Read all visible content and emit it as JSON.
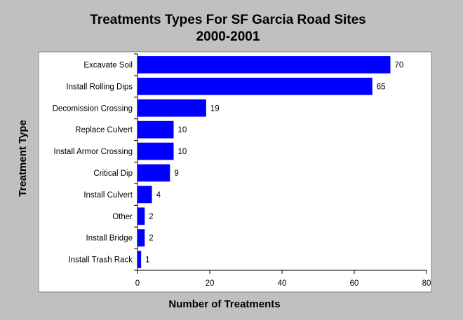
{
  "chart_data": {
    "type": "bar",
    "orientation": "horizontal",
    "title": "Treatments Types For SF Garcia Road Sites",
    "subtitle": "2000-2001",
    "xlabel": "Number of Treatments",
    "ylabel": "Treatment Type",
    "categories": [
      "Excavate Soil",
      "Install Rolling Dips",
      "Decomission Crossing",
      "Replace Culvert",
      "Install Armor Crossing",
      "Critical Dip",
      "Install Culvert",
      "Other",
      "Install Bridge",
      "Install Trash Rack"
    ],
    "values": [
      70,
      65,
      19,
      10,
      10,
      9,
      4,
      2,
      2,
      1
    ],
    "xlim": [
      0,
      80
    ],
    "xticks": [
      0,
      20,
      40,
      60,
      80
    ],
    "grid": false,
    "legend": "none",
    "colors": {
      "bar": "#0000ff",
      "plot_background": "#ffffff",
      "page_background": "#c0c0c0"
    }
  }
}
